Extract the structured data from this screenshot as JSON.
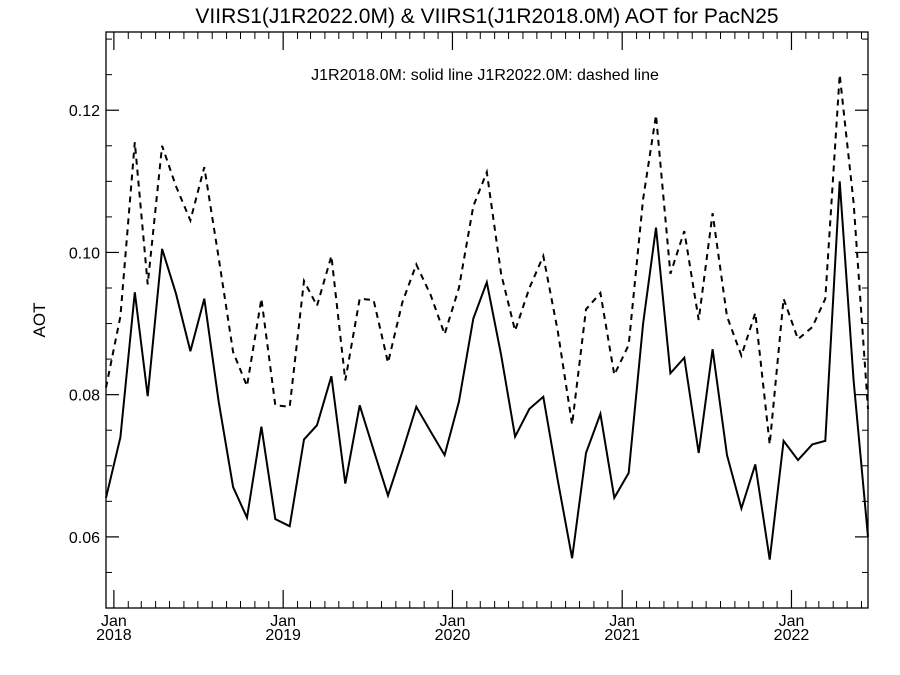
{
  "chart_data": {
    "type": "line",
    "title": "VIIRS1(J1R2022.0M) & VIIRS1(J1R2018.0M)  AOT for PacN25",
    "annotation": "J1R2018.0M: solid line   J1R2022.0M: dashed line",
    "xlabel": "",
    "ylabel": "AOT",
    "x_range": [
      "2017-12-15",
      "2022-06-15"
    ],
    "ylim": [
      0.05,
      0.131
    ],
    "y_ticks": [
      0.06,
      0.08,
      0.1,
      0.12
    ],
    "y_tick_labels": [
      "0.06",
      "0.08",
      "0.10",
      "0.12"
    ],
    "x_ticks": [
      {
        "date": "2018-01-01",
        "month": "Jan",
        "year": "2018"
      },
      {
        "date": "2019-01-01",
        "month": "Jan",
        "year": "2019"
      },
      {
        "date": "2020-01-01",
        "month": "Jan",
        "year": "2020"
      },
      {
        "date": "2021-01-01",
        "month": "Jan",
        "year": "2021"
      },
      {
        "date": "2022-01-01",
        "month": "Jan",
        "year": "2022"
      }
    ],
    "grid": false,
    "x": [
      "2017-12-15",
      "2018-01-15",
      "2018-02-15",
      "2018-03-15",
      "2018-04-15",
      "2018-05-15",
      "2018-06-15",
      "2018-07-15",
      "2018-08-15",
      "2018-09-15",
      "2018-10-15",
      "2018-11-15",
      "2018-12-15",
      "2019-01-15",
      "2019-02-15",
      "2019-03-15",
      "2019-04-15",
      "2019-05-15",
      "2019-06-15",
      "2019-07-15",
      "2019-08-15",
      "2019-09-15",
      "2019-10-15",
      "2019-11-15",
      "2019-12-15",
      "2020-01-15",
      "2020-02-15",
      "2020-03-15",
      "2020-04-15",
      "2020-05-15",
      "2020-06-15",
      "2020-07-15",
      "2020-08-15",
      "2020-09-15",
      "2020-10-15",
      "2020-11-15",
      "2020-12-15",
      "2021-01-15",
      "2021-02-15",
      "2021-03-15",
      "2021-04-15",
      "2021-05-15",
      "2021-06-15",
      "2021-07-15",
      "2021-08-15",
      "2021-09-15",
      "2021-10-15",
      "2021-11-15",
      "2021-12-15",
      "2022-01-15",
      "2022-02-15",
      "2022-03-15",
      "2022-04-15",
      "2022-05-15",
      "2022-06-15"
    ],
    "series": [
      {
        "name": "J1R2018.0M",
        "style": "solid",
        "values": [
          0.0655,
          0.074,
          0.0944,
          0.0798,
          0.1005,
          0.0942,
          0.0861,
          0.0935,
          0.079,
          0.067,
          0.0627,
          0.0755,
          0.0625,
          0.0615,
          0.0737,
          0.0757,
          0.0826,
          0.0675,
          0.0785,
          0.0722,
          0.0658,
          0.072,
          0.0783,
          0.0748,
          0.0715,
          0.079,
          0.0907,
          0.0958,
          0.0856,
          0.0741,
          0.078,
          0.0797,
          0.068,
          0.057,
          0.0718,
          0.0773,
          0.0655,
          0.069,
          0.09,
          0.1035,
          0.083,
          0.0852,
          0.0718,
          0.0864,
          0.0715,
          0.064,
          0.0702,
          0.0568,
          0.0735,
          0.0708,
          0.073,
          0.0735,
          0.11,
          0.082,
          0.06
        ]
      },
      {
        "name": "J1R2022.0M",
        "style": "dashed",
        "values": [
          0.081,
          0.091,
          0.1155,
          0.0955,
          0.115,
          0.1093,
          0.1045,
          0.112,
          0.0992,
          0.086,
          0.0812,
          0.0935,
          0.0785,
          0.0783,
          0.096,
          0.0925,
          0.0995,
          0.082,
          0.0935,
          0.0933,
          0.0845,
          0.093,
          0.0983,
          0.094,
          0.0885,
          0.095,
          0.1065,
          0.1113,
          0.097,
          0.089,
          0.095,
          0.0995,
          0.089,
          0.0758,
          0.092,
          0.0943,
          0.0828,
          0.087,
          0.1075,
          0.1193,
          0.097,
          0.103,
          0.0905,
          0.1055,
          0.091,
          0.0855,
          0.0915,
          0.073,
          0.0935,
          0.0878,
          0.0895,
          0.0935,
          0.125,
          0.107,
          0.078
        ]
      }
    ]
  }
}
